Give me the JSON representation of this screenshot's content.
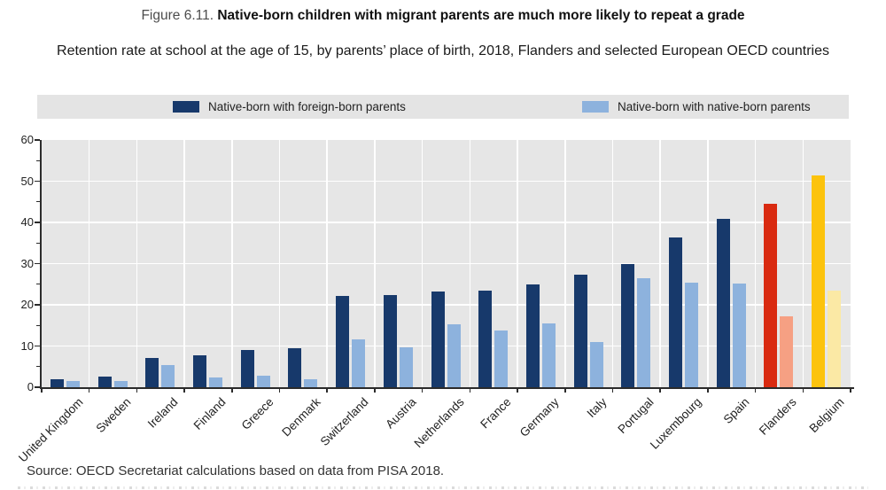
{
  "figure": {
    "label": "Figure 6.11.",
    "title": "Native-born children with migrant parents are much more likely to repeat a grade",
    "subtitle": "Retention rate at school at the age of 15, by parents’ place of birth, 2018, Flanders and selected European OECD countries",
    "source": "Source: OECD Secretariat calculations based on data from PISA 2018."
  },
  "colors": {
    "plot_background": "#e6e6e6",
    "legend_background": "#e4e4e4",
    "gridline": "#ffffff",
    "axis": "#2b2b2b",
    "dark_blue": "#17396b",
    "light_blue": "#8db2dd",
    "flanders_dark": "#d92a10",
    "flanders_light": "#f6a083",
    "belgium_dark": "#fcc30d",
    "belgium_light": "#fbe9a5"
  },
  "chart_data": {
    "type": "bar",
    "title": "Native-born children with migrant parents are much more likely to repeat a grade",
    "subtitle": "Retention rate at school at the age of 15, by parents’ place of birth, 2018, Flanders and selected European OECD countries",
    "xlabel": "",
    "ylabel": "",
    "ylim": [
      0,
      60
    ],
    "ytick_step": 10,
    "yticks": [
      0,
      10,
      20,
      30,
      40,
      50,
      60
    ],
    "grid": true,
    "legend_position": "top",
    "categories": [
      "United Kingdom",
      "Sweden",
      "Ireland",
      "Finland",
      "Greece",
      "Denmark",
      "Switzerland",
      "Austria",
      "Netherlands",
      "France",
      "Germany",
      "Italy",
      "Portugal",
      "Luxembourg",
      "Spain",
      "Flanders",
      "Belgium"
    ],
    "series": [
      {
        "name": "Native-born with foreign-born parents",
        "color": "#17396b",
        "values": [
          2.0,
          2.5,
          7.0,
          7.7,
          9.0,
          9.5,
          22.2,
          22.4,
          23.2,
          23.4,
          24.9,
          27.3,
          29.8,
          36.4,
          40.9,
          44.6,
          51.5
        ],
        "color_overrides": {
          "Flanders": "#d92a10",
          "Belgium": "#fcc30d"
        }
      },
      {
        "name": "Native-born with native-born parents",
        "color": "#8db2dd",
        "values": [
          1.5,
          1.6,
          5.4,
          2.3,
          2.8,
          1.9,
          11.6,
          9.7,
          15.2,
          13.7,
          15.4,
          10.9,
          26.5,
          25.4,
          25.1,
          17.2,
          23.4
        ],
        "color_overrides": {
          "Flanders": "#f6a083",
          "Belgium": "#fbe9a5"
        }
      }
    ]
  }
}
